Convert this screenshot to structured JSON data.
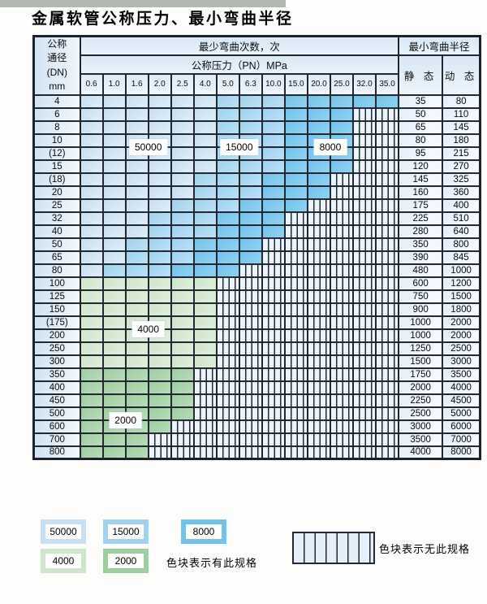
{
  "title": "金属软管公称压力、最小弯曲半径",
  "table": {
    "header": {
      "dn_label_lines": [
        "公称",
        "通径",
        "(DN)",
        "mm"
      ],
      "bend_cycles_label": "最少弯曲次数，次",
      "pressure_label": "公称压力（PN）MPa",
      "pressure_ticks": [
        "0.6",
        "1.0",
        "1.6",
        "2.0",
        "2.5",
        "4.0",
        "5.0",
        "6.3",
        "10.0",
        "15.0",
        "20.0",
        "25.0",
        "32.0",
        "35.0"
      ],
      "radius_label": "最小弯曲半径",
      "static_label": "静 态",
      "dynamic_label": "动 态"
    },
    "zone_codes": {
      "L": "50000",
      "M": "15000",
      "D": "8000",
      "G": "4000",
      "g": "2000",
      "-": "无此规格"
    },
    "rows": [
      {
        "dn": "4",
        "cells": "LLLLLLMMMDDDDD",
        "static": "35",
        "dynamic": "80"
      },
      {
        "dn": "6",
        "cells": "LLLLLLMMMDDD--",
        "static": "50",
        "dynamic": "110"
      },
      {
        "dn": "8",
        "cells": "LLLLLLMMMDDD--",
        "static": "65",
        "dynamic": "145"
      },
      {
        "dn": "10",
        "cells": "LLLLLLMMMDDD--",
        "static": "80",
        "dynamic": "180"
      },
      {
        "dn": "(12)",
        "cells": "LLLLLLMMMDDD--",
        "static": "95",
        "dynamic": "215"
      },
      {
        "dn": "15",
        "cells": "LLLLLLMMMDDD--",
        "static": "120",
        "dynamic": "270"
      },
      {
        "dn": "(18)",
        "cells": "LLLLLMMMDDD---",
        "static": "145",
        "dynamic": "325"
      },
      {
        "dn": "20",
        "cells": "LLLLLMMMDDD---",
        "static": "160",
        "dynamic": "360"
      },
      {
        "dn": "25",
        "cells": "LLLLMMMDDD----",
        "static": "175",
        "dynamic": "400"
      },
      {
        "dn": "32",
        "cells": "LLLMMMDDD-----",
        "static": "225",
        "dynamic": "510"
      },
      {
        "dn": "40",
        "cells": "LLLMMMDDD-----",
        "static": "280",
        "dynamic": "640"
      },
      {
        "dn": "50",
        "cells": "LLMMMDDD------",
        "static": "350",
        "dynamic": "800"
      },
      {
        "dn": "65",
        "cells": "LLMMMDDD------",
        "static": "390",
        "dynamic": "845"
      },
      {
        "dn": "80",
        "cells": "LMMMDDD-------",
        "static": "480",
        "dynamic": "1000"
      },
      {
        "dn": "100",
        "cells": "GGGGGG--------",
        "static": "600",
        "dynamic": "1200"
      },
      {
        "dn": "125",
        "cells": "GGGGGG--------",
        "static": "750",
        "dynamic": "1500"
      },
      {
        "dn": "150",
        "cells": "GGGGGG--------",
        "static": "900",
        "dynamic": "1800"
      },
      {
        "dn": "(175)",
        "cells": "GGGGGG--------",
        "static": "1000",
        "dynamic": "2000"
      },
      {
        "dn": "200",
        "cells": "GGGGGG--------",
        "static": "1000",
        "dynamic": "2000"
      },
      {
        "dn": "250",
        "cells": "GGGGGG--------",
        "static": "1250",
        "dynamic": "2500"
      },
      {
        "dn": "300",
        "cells": "GGGGGG--------",
        "static": "1500",
        "dynamic": "3000"
      },
      {
        "dn": "350",
        "cells": "ggggg---------",
        "static": "1750",
        "dynamic": "3500"
      },
      {
        "dn": "400",
        "cells": "ggggg---------",
        "static": "2000",
        "dynamic": "4000"
      },
      {
        "dn": "450",
        "cells": "ggggg---------",
        "static": "2250",
        "dynamic": "4500"
      },
      {
        "dn": "500",
        "cells": "ggggg---------",
        "static": "2500",
        "dynamic": "5000"
      },
      {
        "dn": "600",
        "cells": "gggg----------",
        "static": "3000",
        "dynamic": "6000"
      },
      {
        "dn": "700",
        "cells": "ggg-----------",
        "static": "3500",
        "dynamic": "7000"
      },
      {
        "dn": "800",
        "cells": "ggg-----------",
        "static": "4000",
        "dynamic": "8000"
      }
    ],
    "zone_labels": [
      {
        "text": "50000",
        "rowA": 3,
        "colA": 2
      },
      {
        "text": "15000",
        "rowA": 3,
        "colA": 6
      },
      {
        "text": "8000",
        "rowA": 3,
        "colA": 10
      },
      {
        "text": "4000",
        "rowA": 17,
        "colA": 2
      },
      {
        "text": "2000",
        "rowA": 24,
        "colA": 1
      }
    ]
  },
  "legend": {
    "items": [
      {
        "label": "50000",
        "code": "L"
      },
      {
        "label": "15000",
        "code": "M"
      },
      {
        "label": "8000",
        "code": "D"
      },
      {
        "label": "4000",
        "code": "G"
      },
      {
        "label": "2000",
        "code": "g"
      }
    ],
    "has_spec_note": "色块表示有此规格",
    "no_spec_note": "色块表示无此规格"
  },
  "colors": {
    "zone_50000": "#c6dff3",
    "zone_15000": "#a0d2ef",
    "zone_8000": "#73c2ea",
    "zone_4000": "#cfe5cb",
    "zone_2000": "#9ecea0",
    "hatch_bg": "#edf4fb",
    "grid": "#222831"
  }
}
